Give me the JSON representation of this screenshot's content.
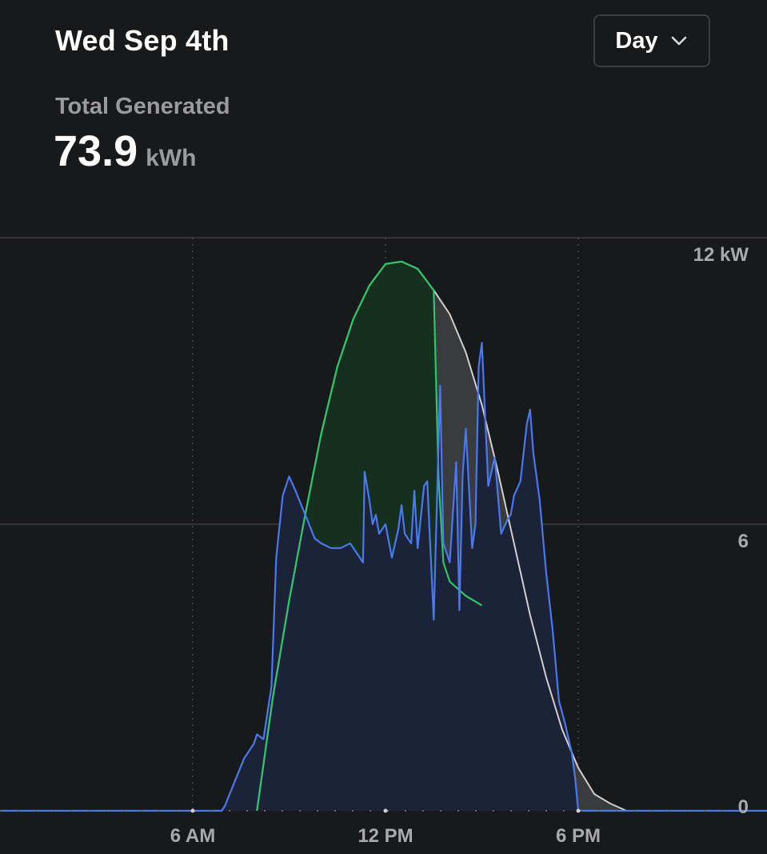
{
  "header": {
    "date": "Wed Sep 4th",
    "range_selector": {
      "label": "Day",
      "icon": "chevron-down-icon"
    }
  },
  "summary": {
    "label": "Total Generated",
    "value": "73.9",
    "unit": "kWh"
  },
  "colors": {
    "background": "#18191b",
    "solar_line": "#2fc46a",
    "solar_fill": "#16301f",
    "capacity_line": "#cfcfcf",
    "capacity_fill": "#3a3b3d",
    "home_line": "#4a78ee",
    "home_fill": "#1c2237",
    "grid_line": "#3d3e42"
  },
  "chart_data": {
    "type": "area",
    "x_unit": "hour of day",
    "y_unit": "kW",
    "ylim": [
      0,
      12
    ],
    "xlim": [
      0,
      24
    ],
    "x_ticks": [
      {
        "value": 6,
        "label": "6 AM"
      },
      {
        "value": 12,
        "label": "12 PM"
      },
      {
        "value": 18,
        "label": "6 PM"
      }
    ],
    "y_ticks": [
      {
        "value": 12,
        "label": "12 kW"
      },
      {
        "value": 6,
        "label": "6"
      },
      {
        "value": 0,
        "label": "0"
      }
    ],
    "grid": true,
    "series": [
      {
        "x": [
          8.0,
          8.5,
          9.0,
          9.5,
          10.0,
          10.5,
          11.0,
          11.5,
          12.0,
          12.5,
          13.0,
          13.5,
          13.6,
          14.0,
          14.5,
          15.0,
          15.5,
          16.0,
          16.5,
          17.0,
          17.5,
          18.0,
          18.5,
          19.0,
          19.5
        ],
        "values": [
          0.0,
          2.4,
          4.4,
          6.2,
          7.9,
          9.3,
          10.3,
          11.0,
          11.45,
          11.5,
          11.35,
          10.9,
          10.8,
          10.4,
          9.6,
          8.5,
          7.1,
          5.6,
          4.1,
          2.8,
          1.7,
          0.9,
          0.35,
          0.15,
          0.0
        ]
      },
      {
        "x": [
          8.0,
          8.5,
          9.0,
          9.5,
          10.0,
          10.5,
          11.0,
          11.5,
          12.0,
          12.5,
          13.0,
          13.5,
          13.65,
          13.8,
          14.0,
          14.5,
          15.0
        ],
        "values": [
          0.0,
          2.4,
          4.4,
          6.2,
          7.9,
          9.3,
          10.3,
          11.0,
          11.45,
          11.5,
          11.35,
          10.9,
          7.0,
          5.2,
          4.8,
          4.5,
          4.3
        ]
      },
      {
        "x": [
          0,
          6.9,
          7.0,
          7.3,
          7.6,
          7.9,
          8.0,
          8.2,
          8.45,
          8.6,
          8.8,
          9.0,
          9.2,
          9.5,
          9.8,
          10.0,
          10.3,
          10.6,
          10.9,
          11.1,
          11.3,
          11.35,
          11.5,
          11.6,
          11.7,
          11.8,
          12.0,
          12.2,
          12.4,
          12.5,
          12.6,
          12.8,
          12.9,
          13.0,
          13.2,
          13.3,
          13.5,
          13.7,
          13.8,
          14.0,
          14.2,
          14.3,
          14.4,
          14.5,
          14.7,
          14.8,
          14.9,
          15.0,
          15.2,
          15.4,
          15.6,
          15.8,
          15.9,
          16.0,
          16.2,
          16.4,
          16.5,
          16.6,
          16.8,
          17.0,
          17.2,
          17.4,
          17.6,
          17.8,
          17.9,
          18.0,
          18.1,
          24
        ],
        "values": [
          0,
          0,
          0.1,
          0.6,
          1.1,
          1.4,
          1.6,
          1.5,
          2.6,
          5.3,
          6.6,
          7.0,
          6.7,
          6.2,
          5.7,
          5.6,
          5.5,
          5.5,
          5.6,
          5.4,
          5.2,
          7.1,
          6.5,
          6.0,
          6.2,
          5.8,
          6.0,
          5.3,
          5.9,
          6.4,
          5.8,
          5.6,
          6.7,
          5.5,
          6.8,
          6.9,
          4.0,
          8.9,
          5.6,
          5.2,
          7.3,
          4.2,
          7.0,
          8.0,
          5.5,
          6.0,
          9.3,
          9.8,
          6.8,
          7.4,
          5.8,
          6.1,
          6.2,
          6.6,
          6.9,
          8.1,
          8.4,
          7.5,
          6.5,
          5.0,
          3.8,
          2.3,
          1.8,
          1.2,
          0.7,
          0.0,
          0.0,
          0.0
        ]
      }
    ]
  }
}
